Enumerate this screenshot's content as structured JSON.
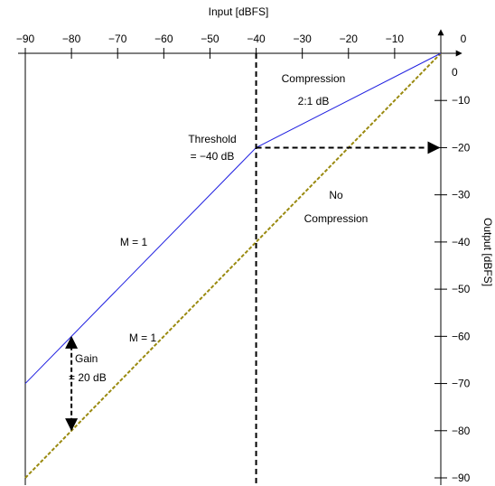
{
  "diagram": {
    "x_axis": {
      "title": "Input [dBFS]",
      "ticks": [
        -90,
        -80,
        -70,
        -60,
        -50,
        -40,
        -30,
        -20,
        -10,
        0
      ],
      "tick_labels": [
        "−90",
        "−80",
        "−70",
        "−60",
        "−50",
        "−40",
        "−30",
        "−20",
        "−10",
        "0"
      ]
    },
    "y_axis": {
      "title": "Output [dBFS]",
      "ticks": [
        0,
        -10,
        -20,
        -30,
        -40,
        -50,
        -60,
        -70,
        -80,
        -90
      ],
      "tick_labels": [
        "0",
        "−10",
        "−20",
        "−30",
        "−40",
        "−50",
        "−60",
        "−70",
        "−80",
        "−90"
      ]
    },
    "annotations": {
      "compression": [
        "Compression",
        "2:1 dB"
      ],
      "threshold": [
        "Threshold",
        "= −40 dB"
      ],
      "no_compression": [
        "No",
        "Compression"
      ],
      "m_upper": "M = 1",
      "m_lower": "M = 1",
      "gain": [
        "Gain",
        "= 20 dB"
      ]
    },
    "colors": {
      "compressed_curve": "#1f1fe0",
      "reference_line": "#9a8a10",
      "axes": "#000000"
    }
  },
  "chart_data": {
    "type": "line",
    "xlabel": "Input [dBFS]",
    "ylabel": "Output [dBFS]",
    "xlim": [
      -90,
      0
    ],
    "ylim": [
      -90,
      0
    ],
    "grid": false,
    "series": [
      {
        "x": [
          -90,
          -40,
          0
        ],
        "y": [
          -70,
          -20,
          0
        ]
      },
      {
        "x": [
          -90,
          0
        ],
        "y": [
          -90,
          0
        ]
      }
    ],
    "threshold_input": -40,
    "threshold_output": -20,
    "gain_at_input": -80,
    "gain_from": -80,
    "gain_to": -60
  }
}
